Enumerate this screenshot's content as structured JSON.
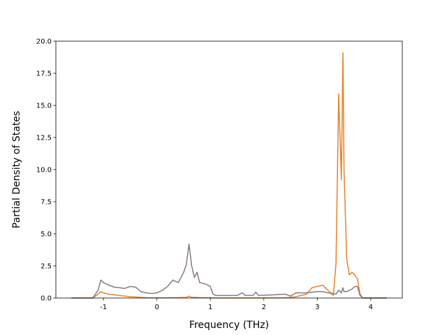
{
  "chart_data": {
    "type": "line",
    "xlabel": "Frequency (THz)",
    "ylabel": "Partial Density of States",
    "x": [
      -1.6,
      -1.2,
      -1.1,
      -1.05,
      -1.0,
      -0.9,
      -0.8,
      -0.7,
      -0.6,
      -0.5,
      -0.4,
      -0.3,
      -0.2,
      -0.1,
      0,
      0.1,
      0.2,
      0.3,
      0.4,
      0.5,
      0.55,
      0.6,
      0.65,
      0.7,
      0.75,
      0.8,
      0.9,
      1.0,
      1.05,
      1.1,
      1.5,
      1.6,
      1.65,
      1.8,
      1.85,
      1.9,
      2.2,
      2.4,
      2.5,
      2.6,
      2.8,
      2.9,
      3.0,
      3.1,
      3.2,
      3.3,
      3.35,
      3.4,
      3.45,
      3.48,
      3.5,
      3.55,
      3.6,
      3.65,
      3.7,
      3.75,
      3.8,
      3.85,
      4.3
    ],
    "series": [
      {
        "color": "#e8812a",
        "values": [
          0,
          0,
          0.3,
          0.5,
          0.4,
          0.3,
          0.25,
          0.2,
          0.15,
          0.1,
          0.08,
          0.05,
          0.03,
          0.02,
          0.02,
          0.02,
          0.02,
          0.03,
          0.03,
          0.05,
          0.05,
          0.15,
          0.05,
          0.05,
          0.05,
          0.03,
          0.03,
          0.02,
          0.01,
          0.01,
          0.01,
          0.01,
          0.01,
          0.01,
          0.01,
          0.01,
          0.01,
          0.02,
          0.05,
          0.1,
          0.3,
          0.8,
          0.9,
          1.0,
          0.6,
          0.2,
          2.7,
          15.9,
          9.2,
          19.1,
          10,
          3.0,
          1.8,
          2.0,
          1.8,
          1.5,
          0.3,
          0,
          0
        ]
      },
      {
        "color": "#86797c",
        "values": [
          0,
          0,
          0.6,
          1.4,
          1.2,
          1.0,
          0.85,
          0.8,
          0.75,
          0.9,
          0.85,
          0.5,
          0.4,
          0.35,
          0.4,
          0.6,
          0.9,
          1.4,
          1.2,
          2.0,
          2.6,
          4.2,
          2.5,
          1.6,
          2.0,
          1.2,
          1.1,
          0.9,
          0.3,
          0.2,
          0.2,
          0.4,
          0.2,
          0.2,
          0.45,
          0.2,
          0.25,
          0.3,
          0.15,
          0.4,
          0.4,
          0.45,
          0.5,
          0.5,
          0.4,
          0.35,
          0.3,
          0.6,
          0.4,
          0.8,
          0.5,
          0.5,
          0.6,
          0.7,
          0.9,
          0.9,
          0.2,
          0,
          0
        ]
      }
    ],
    "xlim": [
      -1.89,
      4.59
    ],
    "xticks": [
      -1,
      0,
      1,
      2,
      3,
      4
    ],
    "ylim": [
      0,
      20
    ],
    "yticks": [
      {
        "value": 0,
        "label": "0.0"
      },
      {
        "value": 2.5,
        "label": "2.5"
      },
      {
        "value": 5,
        "label": "5.0"
      },
      {
        "value": 7.5,
        "label": "7.5"
      },
      {
        "value": 10,
        "label": "10.0"
      },
      {
        "value": 12.5,
        "label": "12.5"
      },
      {
        "value": 15,
        "label": "15.0"
      },
      {
        "value": 17.5,
        "label": "17.5"
      },
      {
        "value": 20,
        "label": "20.0"
      }
    ]
  }
}
